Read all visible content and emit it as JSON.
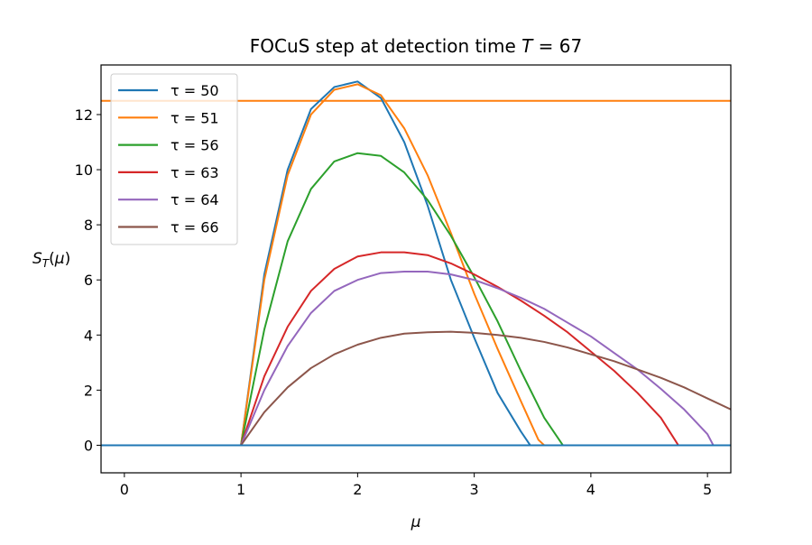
{
  "chart_data": {
    "type": "line",
    "title": "FOCuS step at detection time T = 67",
    "xlabel": "μ",
    "ylabel": "S_T(μ)",
    "xlim": [
      -0.2,
      5.2
    ],
    "ylim": [
      -1,
      13.8
    ],
    "xticks": [
      0,
      1,
      2,
      3,
      4,
      5
    ],
    "yticks": [
      0,
      2,
      4,
      6,
      8,
      10,
      12
    ],
    "grid": false,
    "legend_position": "top-left",
    "threshold": {
      "y": 12.5,
      "color": "#ff7f0e"
    },
    "baseline": {
      "y": 0,
      "color": "#1f77b4"
    },
    "series": [
      {
        "name": "τ = 50",
        "color": "#1f77b4",
        "x": [
          0.2,
          1.0,
          1.2,
          1.4,
          1.6,
          1.8,
          2.0,
          2.2,
          2.4,
          2.6,
          2.8,
          3.0,
          3.2,
          3.4,
          3.48,
          5.2
        ],
        "y": [
          0,
          0,
          6.2,
          10.0,
          12.2,
          13.0,
          13.2,
          12.6,
          11.0,
          8.7,
          6.0,
          3.9,
          1.9,
          0.5,
          0,
          0
        ]
      },
      {
        "name": "τ = 51",
        "color": "#ff7f0e",
        "x": [
          0.2,
          1.0,
          1.2,
          1.4,
          1.6,
          1.8,
          2.0,
          2.2,
          2.4,
          2.6,
          2.8,
          3.0,
          3.2,
          3.4,
          3.55,
          3.6,
          5.2
        ],
        "y": [
          0,
          0,
          6.0,
          9.8,
          12.0,
          12.9,
          13.1,
          12.7,
          11.5,
          9.8,
          7.7,
          5.5,
          3.5,
          1.6,
          0.2,
          0,
          0
        ]
      },
      {
        "name": "τ = 56",
        "color": "#2ca02c",
        "x": [
          0.2,
          1.0,
          1.2,
          1.4,
          1.6,
          1.8,
          2.0,
          2.2,
          2.4,
          2.6,
          2.8,
          3.0,
          3.2,
          3.4,
          3.6,
          3.76,
          5.2
        ],
        "y": [
          0,
          0,
          4.2,
          7.4,
          9.3,
          10.3,
          10.6,
          10.5,
          9.9,
          8.9,
          7.6,
          6.1,
          4.5,
          2.7,
          1.0,
          0,
          0
        ]
      },
      {
        "name": "τ = 63",
        "color": "#d62728",
        "x": [
          0.2,
          1.0,
          1.2,
          1.4,
          1.6,
          1.8,
          2.0,
          2.2,
          2.4,
          2.6,
          2.8,
          3.0,
          3.2,
          3.4,
          3.6,
          3.8,
          4.0,
          4.2,
          4.4,
          4.6,
          4.75,
          5.2
        ],
        "y": [
          0,
          0,
          2.5,
          4.3,
          5.6,
          6.4,
          6.85,
          7.0,
          7.0,
          6.9,
          6.6,
          6.2,
          5.75,
          5.25,
          4.7,
          4.1,
          3.4,
          2.7,
          1.9,
          1.0,
          0,
          0
        ]
      },
      {
        "name": "τ = 64",
        "color": "#9467bd",
        "x": [
          0.2,
          1.0,
          1.2,
          1.4,
          1.6,
          1.8,
          2.0,
          2.2,
          2.4,
          2.6,
          2.8,
          3.0,
          3.2,
          3.4,
          3.6,
          3.8,
          4.0,
          4.2,
          4.4,
          4.6,
          4.8,
          5.0,
          5.05,
          5.2
        ],
        "y": [
          0,
          0,
          2.0,
          3.6,
          4.8,
          5.6,
          6.0,
          6.25,
          6.3,
          6.3,
          6.2,
          6.0,
          5.7,
          5.35,
          4.95,
          4.45,
          3.95,
          3.35,
          2.75,
          2.05,
          1.3,
          0.4,
          0,
          0
        ]
      },
      {
        "name": "τ = 66",
        "color": "#8c564b",
        "x": [
          1.0,
          1.2,
          1.4,
          1.6,
          1.8,
          2.0,
          2.2,
          2.4,
          2.6,
          2.8,
          3.0,
          3.2,
          3.4,
          3.6,
          3.8,
          4.0,
          4.2,
          4.4,
          4.6,
          4.8,
          5.0,
          5.2
        ],
        "y": [
          0,
          1.2,
          2.1,
          2.8,
          3.3,
          3.65,
          3.9,
          4.05,
          4.1,
          4.12,
          4.08,
          4.0,
          3.9,
          3.75,
          3.55,
          3.3,
          3.05,
          2.75,
          2.45,
          2.1,
          1.7,
          1.3
        ]
      }
    ]
  }
}
